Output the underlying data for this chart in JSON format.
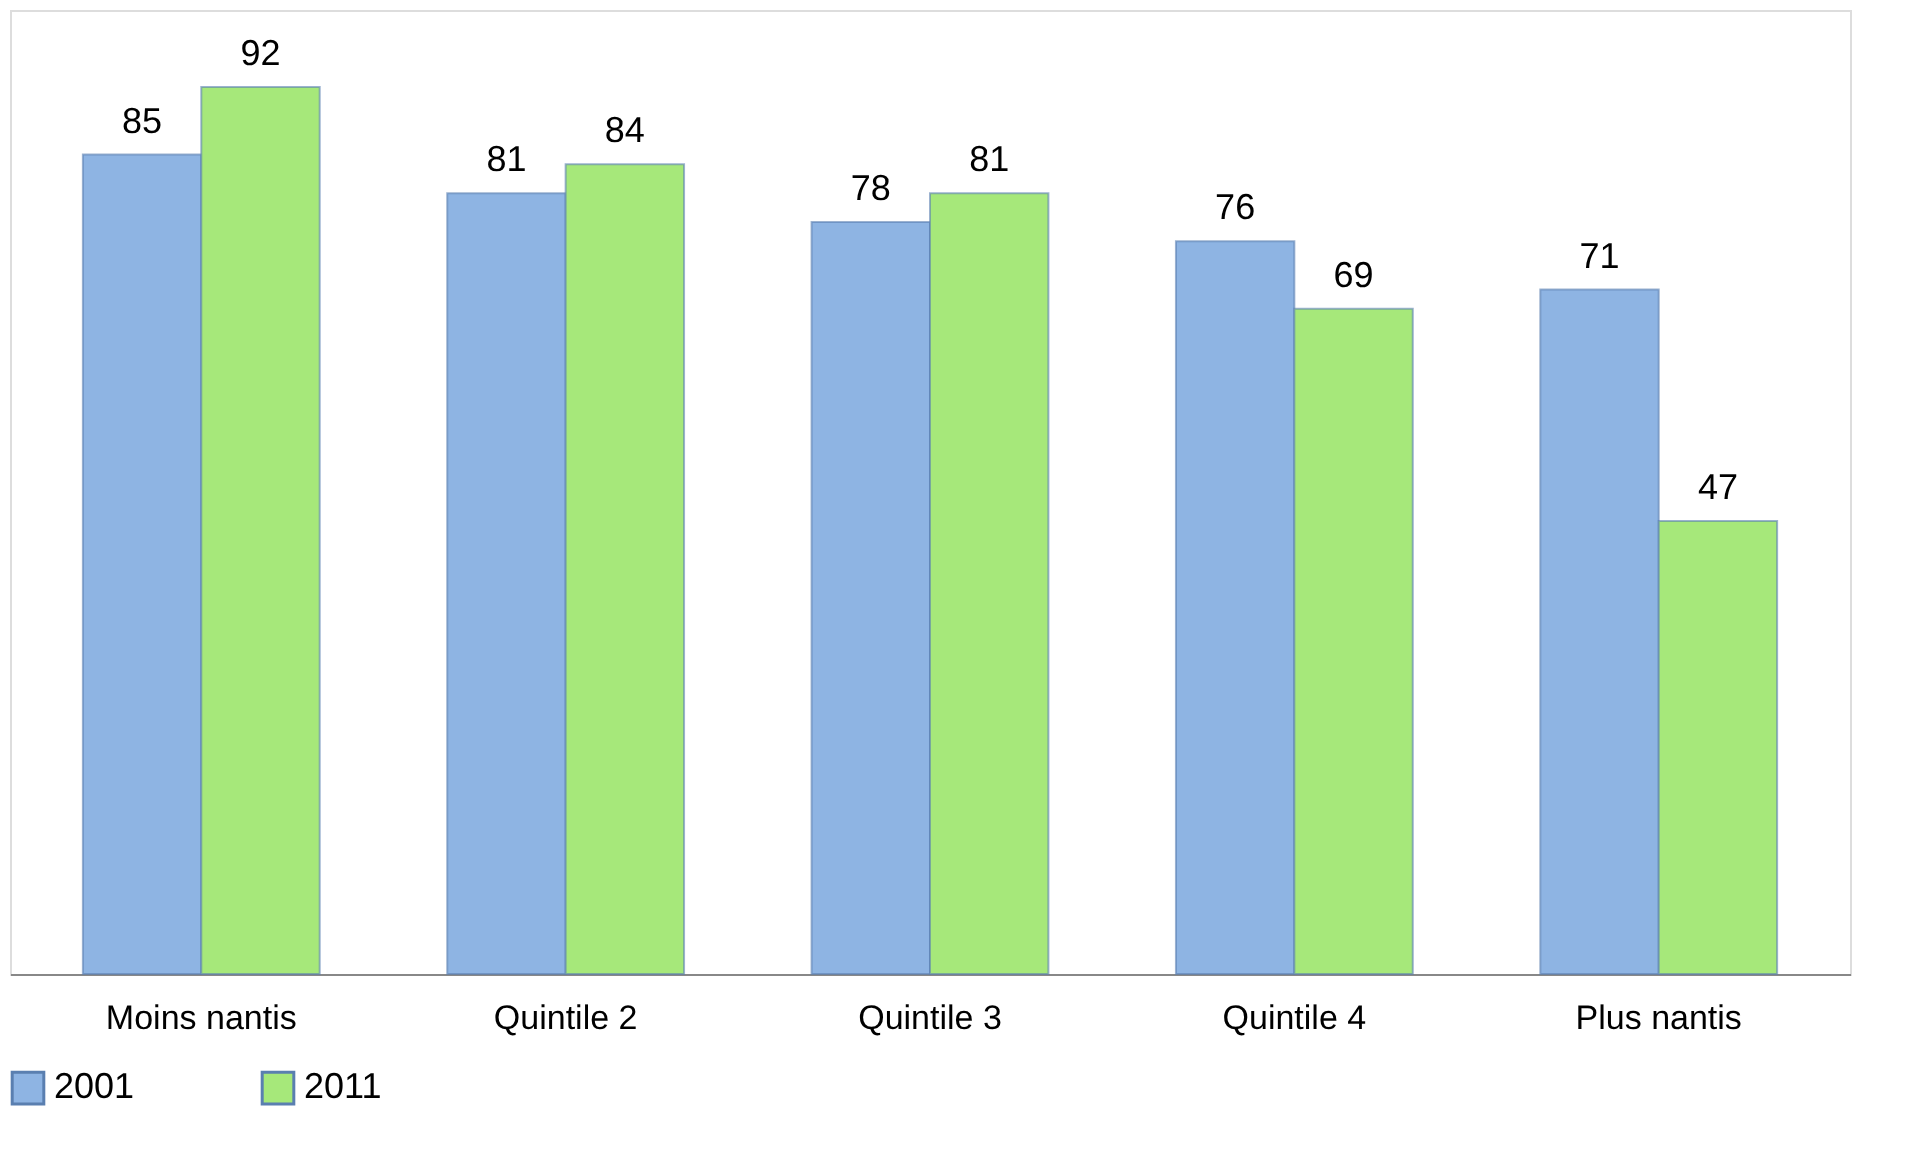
{
  "chart_data": {
    "type": "bar",
    "categories": [
      "Moins nantis",
      "Quintile 2",
      "Quintile 3",
      "Quintile 4",
      "Plus nantis"
    ],
    "series": [
      {
        "name": "2001",
        "color": "#8eb4e3",
        "values": [
          85,
          81,
          78,
          76,
          71
        ]
      },
      {
        "name": "2011",
        "color": "#a6e87a",
        "values": [
          92,
          84,
          81,
          69,
          47
        ]
      }
    ],
    "data_labels": true,
    "grid": false,
    "legend": "bottom"
  }
}
